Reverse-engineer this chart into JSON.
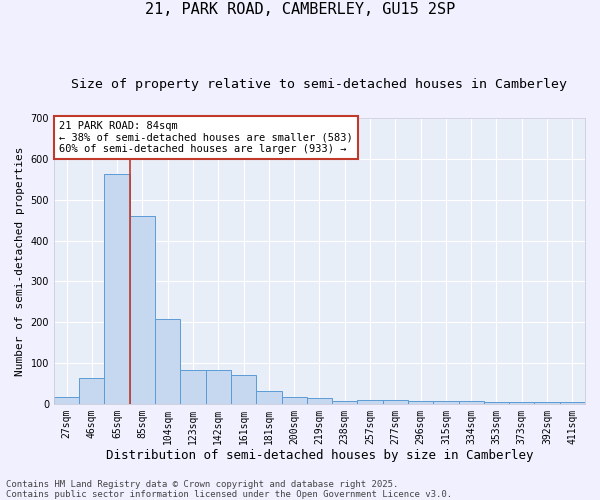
{
  "title": "21, PARK ROAD, CAMBERLEY, GU15 2SP",
  "subtitle": "Size of property relative to semi-detached houses in Camberley",
  "xlabel": "Distribution of semi-detached houses by size in Camberley",
  "ylabel": "Number of semi-detached properties",
  "footer": "Contains HM Land Registry data © Crown copyright and database right 2025.\nContains public sector information licensed under the Open Government Licence v3.0.",
  "categories": [
    "27sqm",
    "46sqm",
    "65sqm",
    "85sqm",
    "104sqm",
    "123sqm",
    "142sqm",
    "161sqm",
    "181sqm",
    "200sqm",
    "219sqm",
    "238sqm",
    "257sqm",
    "277sqm",
    "296sqm",
    "315sqm",
    "334sqm",
    "353sqm",
    "373sqm",
    "392sqm",
    "411sqm"
  ],
  "values": [
    16,
    63,
    562,
    460,
    209,
    84,
    84,
    71,
    31,
    16,
    15,
    7,
    9,
    9,
    6,
    7,
    8,
    4,
    4,
    4,
    5
  ],
  "bar_color": "#c5d8f0",
  "bar_edge_color": "#5b9bd5",
  "axes_bg_color": "#e8eef8",
  "fig_bg_color": "#f0f0ff",
  "grid_color": "#ffffff",
  "vline_color": "#c0392b",
  "vline_x_index": 2.5,
  "annotation_line1": "21 PARK ROAD: 84sqm",
  "annotation_line2": "← 38% of semi-detached houses are smaller (583)",
  "annotation_line3": "60% of semi-detached houses are larger (933) →",
  "annotation_box_facecolor": "#ffffff",
  "annotation_box_edgecolor": "#c0392b",
  "ylim": [
    0,
    700
  ],
  "yticks": [
    0,
    100,
    200,
    300,
    400,
    500,
    600,
    700
  ],
  "title_fontsize": 11,
  "subtitle_fontsize": 9.5,
  "ylabel_fontsize": 8,
  "xlabel_fontsize": 9,
  "tick_fontsize": 7,
  "ann_fontsize": 7.5,
  "footer_fontsize": 6.5
}
